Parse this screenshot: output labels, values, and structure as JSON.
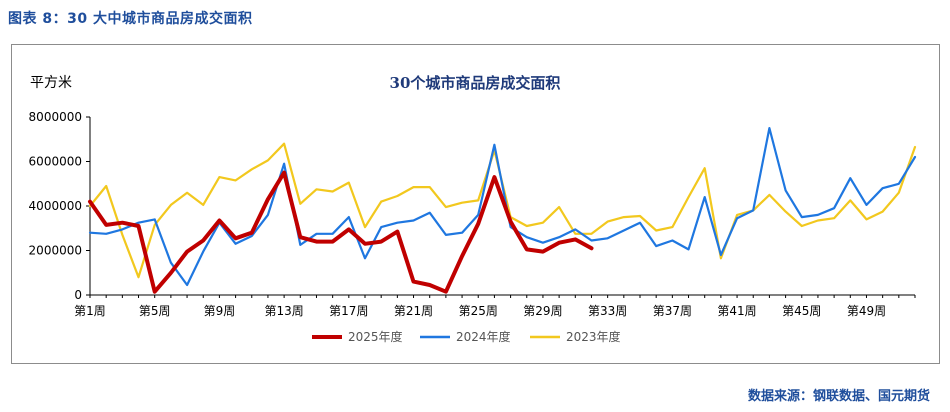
{
  "figure_title": "图表 8：30 大中城市商品房成交面积",
  "source": "数据来源：钢联数据、国元期货",
  "chart_data": {
    "type": "line",
    "title": "30个城市商品房成交面积",
    "ylabel": "平方米",
    "xlabel": "",
    "ylim": [
      0,
      8000000
    ],
    "yticks": [
      "0",
      "2000000",
      "4000000",
      "6000000",
      "8000000"
    ],
    "x_tick_labels": [
      "第1周",
      "第5周",
      "第9周",
      "第13周",
      "第17周",
      "第21周",
      "第25周",
      "第29周",
      "第33周",
      "第37周",
      "第41周",
      "第45周",
      "第49周"
    ],
    "x_tick_weeks": [
      1,
      5,
      9,
      13,
      17,
      21,
      25,
      29,
      33,
      37,
      41,
      45,
      49
    ],
    "legend_position": "bottom",
    "series": [
      {
        "name": "2025年度",
        "color": "#c00000",
        "values": [
          4200000,
          3150000,
          3250000,
          3100000,
          150000,
          1000000,
          1950000,
          2450000,
          3350000,
          2550000,
          2800000,
          4300000,
          5500000,
          2600000,
          2400000,
          2400000,
          2950000,
          2300000,
          2400000,
          2850000,
          600000,
          450000,
          150000,
          1750000,
          3200000,
          5300000,
          3300000,
          2050000,
          1950000,
          2350000,
          2500000,
          2100000
        ]
      },
      {
        "name": "2024年度",
        "color": "#1f77e0",
        "values": [
          2800000,
          2750000,
          2950000,
          3250000,
          3400000,
          1450000,
          450000,
          1950000,
          3250000,
          2300000,
          2650000,
          3600000,
          5900000,
          2250000,
          2750000,
          2750000,
          3500000,
          1650000,
          3050000,
          3250000,
          3350000,
          3700000,
          2700000,
          2800000,
          3600000,
          6750000,
          3050000,
          2600000,
          2350000,
          2600000,
          2950000,
          2450000,
          2550000,
          2900000,
          3250000,
          2200000,
          2450000,
          2050000,
          4400000,
          1800000,
          3450000,
          3800000,
          7500000,
          4700000,
          3500000,
          3600000,
          3900000,
          5250000,
          4050000,
          4800000,
          5000000,
          6200000
        ]
      },
      {
        "name": "2023年度",
        "color": "#f2c81e",
        "values": [
          4000000,
          4900000,
          2700000,
          800000,
          3150000,
          4050000,
          4600000,
          4050000,
          5300000,
          5150000,
          5650000,
          6050000,
          6800000,
          4100000,
          4750000,
          4650000,
          5050000,
          3050000,
          4200000,
          4450000,
          4850000,
          4850000,
          3950000,
          4150000,
          4250000,
          6500000,
          3500000,
          3100000,
          3250000,
          3950000,
          2750000,
          2750000,
          3300000,
          3500000,
          3550000,
          2900000,
          3050000,
          4400000,
          5700000,
          1650000,
          3600000,
          3800000,
          4500000,
          3750000,
          3100000,
          3350000,
          3450000,
          4250000,
          3400000,
          3750000,
          4600000,
          6650000
        ]
      }
    ]
  }
}
